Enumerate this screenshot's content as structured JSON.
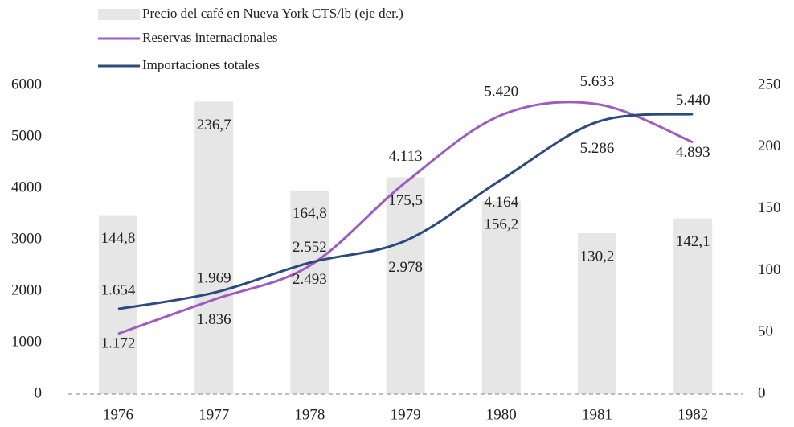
{
  "chart_data": {
    "type": "bar-line",
    "categories": [
      "1976",
      "1977",
      "1978",
      "1979",
      "1980",
      "1981",
      "1982"
    ],
    "series": [
      {
        "name": "Precio del café en Nueva York CTS/lb (eje der.)",
        "type": "bar",
        "axis": "y2",
        "color": "#e6e6e6",
        "values": [
          144.8,
          236.7,
          164.8,
          175.5,
          156.2,
          130.2,
          142.1
        ],
        "value_labels": [
          "144,8",
          "236,7",
          "164,8",
          "175,5",
          "156,2",
          "130,2",
          "142,1"
        ]
      },
      {
        "name": "Reservas internacionales",
        "type": "line",
        "color": "#9e5cc0",
        "values": [
          1172,
          1836,
          2493,
          4113,
          5420,
          5633,
          4893
        ],
        "value_labels": [
          "1.172",
          "1.836",
          "2.493",
          "4.113",
          "5.420",
          "5.633",
          "4.893"
        ]
      },
      {
        "name": "Importaciones totales",
        "type": "line",
        "color": "#2d4a7c",
        "values": [
          1654,
          1969,
          2552,
          2978,
          4164,
          5286,
          5440
        ],
        "value_labels": [
          "1.654",
          "1.969",
          "2.552",
          "2.978",
          "4.164",
          "5.286",
          "5.440"
        ]
      }
    ],
    "ylim": [
      0,
      6000
    ],
    "yticks": [
      0,
      1000,
      2000,
      3000,
      4000,
      5000,
      6000
    ],
    "y2lim": [
      0,
      250
    ],
    "y2ticks": [
      0,
      50,
      100,
      150,
      200,
      250
    ],
    "grid": false
  }
}
